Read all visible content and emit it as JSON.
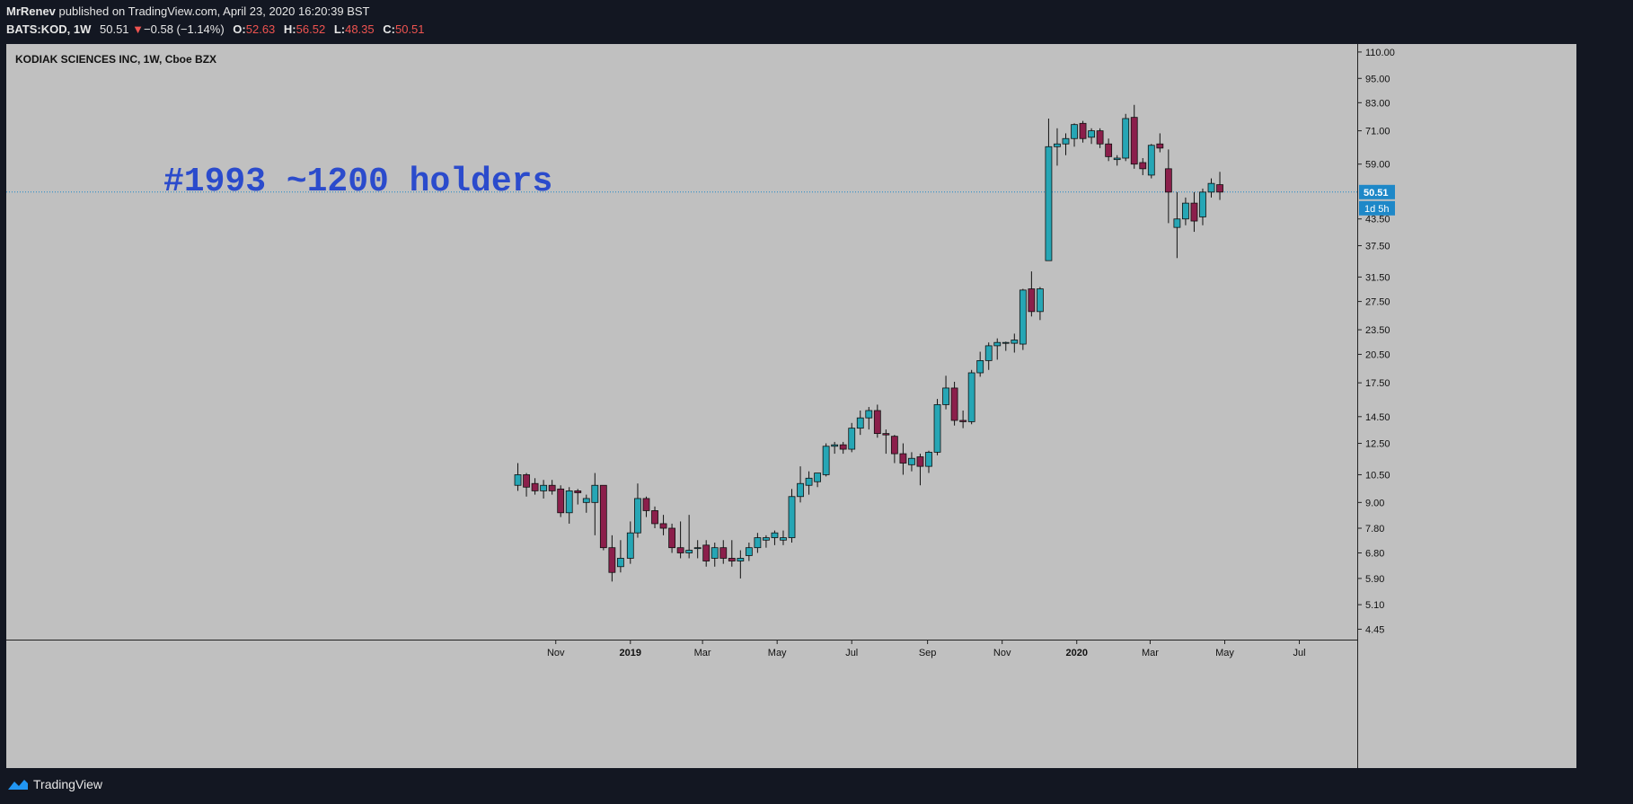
{
  "header": {
    "author": "MrRenev",
    "published_text": "published on TradingView.com, April 23, 2020 16:20:39 BST",
    "symbol": "BATS:KOD, 1W",
    "last": "50.51",
    "change": "−0.58 (−1.14%)",
    "open_label": "O:",
    "open": "52.63",
    "high_label": "H:",
    "high": "56.52",
    "low_label": "L:",
    "low": "48.35",
    "close_label": "C:",
    "close": "50.51"
  },
  "footer": {
    "brand": "TradingView"
  },
  "colors": {
    "up": "#26a6b5",
    "down": "#8b1f4b",
    "background": "#c0c0c0",
    "annotation": "#2b4bcc",
    "last_price": "#1e88c8"
  },
  "chart_data": {
    "type": "candlestick",
    "title": "KODIAK SCIENCES INC, 1W, Cboe BZX",
    "annotation": "#1993 ~1200 holders",
    "scale": "log",
    "ylim": [
      4.2,
      115
    ],
    "y_ticks": [
      "110.00",
      "95.00",
      "83.00",
      "71.00",
      "59.00",
      "50.51",
      "43.50",
      "37.50",
      "31.50",
      "27.50",
      "23.50",
      "20.50",
      "17.50",
      "14.50",
      "12.50",
      "10.50",
      "9.00",
      "7.80",
      "6.80",
      "5.90",
      "5.10",
      "4.45"
    ],
    "x_ticks": [
      "Nov",
      "2019",
      "Mar",
      "May",
      "Jul",
      "Sep",
      "Nov",
      "2020",
      "Mar",
      "May",
      "Jul"
    ],
    "x_tick_dates": [
      "2018-11-01",
      "2019-01-01",
      "2019-03-01",
      "2019-05-01",
      "2019-07-01",
      "2019-09-01",
      "2019-11-01",
      "2020-01-01",
      "2020-03-01",
      "2020-05-01",
      "2020-07-01"
    ],
    "last_price": {
      "value": 50.51,
      "label": "50.51",
      "countdown": "1d 5h"
    },
    "candles": [
      {
        "date": "2018-10-01",
        "open": 9.9,
        "high": 11.2,
        "low": 9.6,
        "close": 10.5
      },
      {
        "date": "2018-10-08",
        "open": 10.5,
        "high": 10.6,
        "low": 9.3,
        "close": 9.8
      },
      {
        "date": "2018-10-15",
        "open": 10.0,
        "high": 10.3,
        "low": 9.4,
        "close": 9.6
      },
      {
        "date": "2018-10-22",
        "open": 9.6,
        "high": 10.2,
        "low": 9.2,
        "close": 9.9
      },
      {
        "date": "2018-10-29",
        "open": 9.9,
        "high": 10.2,
        "low": 9.4,
        "close": 9.6
      },
      {
        "date": "2018-11-05",
        "open": 9.7,
        "high": 9.9,
        "low": 8.3,
        "close": 8.5
      },
      {
        "date": "2018-11-12",
        "open": 8.5,
        "high": 9.8,
        "low": 8.0,
        "close": 9.6
      },
      {
        "date": "2018-11-19",
        "open": 9.6,
        "high": 9.7,
        "low": 8.9,
        "close": 9.5
      },
      {
        "date": "2018-11-26",
        "open": 9.0,
        "high": 9.4,
        "low": 8.5,
        "close": 9.2
      },
      {
        "date": "2018-12-03",
        "open": 9.0,
        "high": 10.6,
        "low": 7.5,
        "close": 9.9
      },
      {
        "date": "2018-12-10",
        "open": 9.9,
        "high": 9.9,
        "low": 6.9,
        "close": 7.0
      },
      {
        "date": "2018-12-17",
        "open": 7.0,
        "high": 7.5,
        "low": 5.8,
        "close": 6.1
      },
      {
        "date": "2018-12-24",
        "open": 6.3,
        "high": 7.3,
        "low": 6.1,
        "close": 6.6
      },
      {
        "date": "2019-01-01",
        "open": 6.6,
        "high": 8.1,
        "low": 6.4,
        "close": 7.6
      },
      {
        "date": "2019-01-07",
        "open": 7.6,
        "high": 10.0,
        "low": 7.4,
        "close": 9.2
      },
      {
        "date": "2019-01-14",
        "open": 9.2,
        "high": 9.3,
        "low": 8.3,
        "close": 8.6
      },
      {
        "date": "2019-01-21",
        "open": 8.6,
        "high": 8.8,
        "low": 7.8,
        "close": 8.0
      },
      {
        "date": "2019-01-28",
        "open": 8.0,
        "high": 8.4,
        "low": 7.5,
        "close": 7.8
      },
      {
        "date": "2019-02-04",
        "open": 7.8,
        "high": 8.0,
        "low": 6.8,
        "close": 7.0
      },
      {
        "date": "2019-02-11",
        "open": 7.0,
        "high": 8.1,
        "low": 6.6,
        "close": 6.8
      },
      {
        "date": "2019-02-18",
        "open": 6.8,
        "high": 8.4,
        "low": 6.6,
        "close": 6.9
      },
      {
        "date": "2019-02-25",
        "open": 7.0,
        "high": 7.3,
        "low": 6.6,
        "close": 7.0
      },
      {
        "date": "2019-03-04",
        "open": 7.1,
        "high": 7.3,
        "low": 6.3,
        "close": 6.5
      },
      {
        "date": "2019-03-11",
        "open": 6.6,
        "high": 7.2,
        "low": 6.3,
        "close": 7.0
      },
      {
        "date": "2019-03-18",
        "open": 7.0,
        "high": 7.3,
        "low": 6.4,
        "close": 6.6
      },
      {
        "date": "2019-03-25",
        "open": 6.6,
        "high": 7.3,
        "low": 6.3,
        "close": 6.5
      },
      {
        "date": "2019-04-01",
        "open": 6.5,
        "high": 6.9,
        "low": 5.9,
        "close": 6.6
      },
      {
        "date": "2019-04-08",
        "open": 6.7,
        "high": 7.2,
        "low": 6.5,
        "close": 7.0
      },
      {
        "date": "2019-04-15",
        "open": 7.0,
        "high": 7.6,
        "low": 6.8,
        "close": 7.4
      },
      {
        "date": "2019-04-22",
        "open": 7.3,
        "high": 7.5,
        "low": 7.0,
        "close": 7.4
      },
      {
        "date": "2019-04-29",
        "open": 7.4,
        "high": 7.7,
        "low": 7.1,
        "close": 7.6
      },
      {
        "date": "2019-05-06",
        "open": 7.3,
        "high": 7.7,
        "low": 7.1,
        "close": 7.4
      },
      {
        "date": "2019-05-13",
        "open": 7.4,
        "high": 9.7,
        "low": 7.2,
        "close": 9.3
      },
      {
        "date": "2019-05-20",
        "open": 9.3,
        "high": 11.0,
        "low": 9.0,
        "close": 10.0
      },
      {
        "date": "2019-05-27",
        "open": 9.9,
        "high": 10.7,
        "low": 9.4,
        "close": 10.3
      },
      {
        "date": "2019-06-03",
        "open": 10.1,
        "high": 10.5,
        "low": 9.8,
        "close": 10.6
      },
      {
        "date": "2019-06-10",
        "open": 10.5,
        "high": 12.5,
        "low": 10.4,
        "close": 12.3
      },
      {
        "date": "2019-06-17",
        "open": 12.3,
        "high": 12.6,
        "low": 11.8,
        "close": 12.4
      },
      {
        "date": "2019-06-24",
        "open": 12.4,
        "high": 12.6,
        "low": 11.8,
        "close": 12.1
      },
      {
        "date": "2019-07-01",
        "open": 12.1,
        "high": 14.0,
        "low": 11.9,
        "close": 13.6
      },
      {
        "date": "2019-07-08",
        "open": 13.6,
        "high": 15.0,
        "low": 13.1,
        "close": 14.4
      },
      {
        "date": "2019-07-15",
        "open": 14.4,
        "high": 15.3,
        "low": 13.5,
        "close": 15.0
      },
      {
        "date": "2019-07-22",
        "open": 15.0,
        "high": 15.5,
        "low": 12.9,
        "close": 13.2
      },
      {
        "date": "2019-07-29",
        "open": 13.2,
        "high": 13.5,
        "low": 11.8,
        "close": 13.1
      },
      {
        "date": "2019-08-05",
        "open": 13.0,
        "high": 13.1,
        "low": 11.2,
        "close": 11.8
      },
      {
        "date": "2019-08-12",
        "open": 11.8,
        "high": 12.5,
        "low": 10.5,
        "close": 11.2
      },
      {
        "date": "2019-08-19",
        "open": 11.1,
        "high": 11.9,
        "low": 10.7,
        "close": 11.5
      },
      {
        "date": "2019-08-26",
        "open": 11.6,
        "high": 11.8,
        "low": 9.9,
        "close": 11.0
      },
      {
        "date": "2019-09-02",
        "open": 11.0,
        "high": 12.0,
        "low": 10.6,
        "close": 11.9
      },
      {
        "date": "2019-09-09",
        "open": 11.9,
        "high": 16.0,
        "low": 11.7,
        "close": 15.5
      },
      {
        "date": "2019-09-16",
        "open": 15.5,
        "high": 18.2,
        "low": 15.1,
        "close": 17.0
      },
      {
        "date": "2019-09-23",
        "open": 17.0,
        "high": 17.6,
        "low": 13.8,
        "close": 14.2
      },
      {
        "date": "2019-09-30",
        "open": 14.2,
        "high": 15.0,
        "low": 13.6,
        "close": 14.1
      },
      {
        "date": "2019-10-07",
        "open": 14.1,
        "high": 18.8,
        "low": 13.9,
        "close": 18.5
      },
      {
        "date": "2019-10-14",
        "open": 18.5,
        "high": 20.8,
        "low": 18.1,
        "close": 19.8
      },
      {
        "date": "2019-10-21",
        "open": 19.8,
        "high": 21.9,
        "low": 18.8,
        "close": 21.5
      },
      {
        "date": "2019-10-28",
        "open": 21.5,
        "high": 22.4,
        "low": 19.9,
        "close": 21.9
      },
      {
        "date": "2019-11-04",
        "open": 21.8,
        "high": 22.0,
        "low": 20.9,
        "close": 21.9
      },
      {
        "date": "2019-11-11",
        "open": 21.8,
        "high": 23.0,
        "low": 20.7,
        "close": 22.2
      },
      {
        "date": "2019-11-18",
        "open": 21.7,
        "high": 29.5,
        "low": 21.0,
        "close": 29.3
      },
      {
        "date": "2019-11-25",
        "open": 29.5,
        "high": 32.5,
        "low": 25.3,
        "close": 26.0
      },
      {
        "date": "2019-12-02",
        "open": 26.0,
        "high": 29.8,
        "low": 24.8,
        "close": 29.5
      },
      {
        "date": "2019-12-09",
        "open": 34.5,
        "high": 76.0,
        "low": 34.5,
        "close": 65.0
      },
      {
        "date": "2019-12-16",
        "open": 65.0,
        "high": 72.0,
        "low": 58.5,
        "close": 66.0
      },
      {
        "date": "2019-12-23",
        "open": 66.0,
        "high": 70.0,
        "low": 62.0,
        "close": 68.0
      },
      {
        "date": "2019-12-30",
        "open": 68.0,
        "high": 74.0,
        "low": 65.0,
        "close": 73.5
      },
      {
        "date": "2020-01-06",
        "open": 74.0,
        "high": 75.0,
        "low": 66.5,
        "close": 68.0
      },
      {
        "date": "2020-01-13",
        "open": 68.5,
        "high": 72.0,
        "low": 66.0,
        "close": 71.0
      },
      {
        "date": "2020-01-20",
        "open": 71.0,
        "high": 72.0,
        "low": 64.5,
        "close": 66.0
      },
      {
        "date": "2020-01-27",
        "open": 66.0,
        "high": 68.0,
        "low": 60.0,
        "close": 61.5
      },
      {
        "date": "2020-02-03",
        "open": 60.5,
        "high": 62.0,
        "low": 58.5,
        "close": 61.0
      },
      {
        "date": "2020-02-10",
        "open": 61.0,
        "high": 78.0,
        "low": 60.0,
        "close": 76.0
      },
      {
        "date": "2020-02-17",
        "open": 76.5,
        "high": 82.0,
        "low": 57.5,
        "close": 59.0
      },
      {
        "date": "2020-02-24",
        "open": 59.5,
        "high": 61.0,
        "low": 55.5,
        "close": 57.5
      },
      {
        "date": "2020-03-02",
        "open": 55.5,
        "high": 66.0,
        "low": 54.5,
        "close": 65.5
      },
      {
        "date": "2020-03-09",
        "open": 66.0,
        "high": 70.0,
        "low": 63.0,
        "close": 64.5
      },
      {
        "date": "2020-03-16",
        "open": 57.5,
        "high": 64.0,
        "low": 42.5,
        "close": 50.5
      },
      {
        "date": "2020-03-23",
        "open": 41.5,
        "high": 50.5,
        "low": 35.0,
        "close": 43.5
      },
      {
        "date": "2020-03-30",
        "open": 43.5,
        "high": 49.0,
        "low": 42.0,
        "close": 47.5
      },
      {
        "date": "2020-04-06",
        "open": 47.5,
        "high": 50.5,
        "low": 40.5,
        "close": 43.0
      },
      {
        "date": "2020-04-13",
        "open": 44.0,
        "high": 51.5,
        "low": 42.0,
        "close": 50.5
      },
      {
        "date": "2020-04-20",
        "open": 50.5,
        "high": 54.5,
        "low": 49.0,
        "close": 53.0
      },
      {
        "date": "2020-04-20",
        "open": 52.63,
        "high": 56.52,
        "low": 48.35,
        "close": 50.51
      }
    ]
  }
}
